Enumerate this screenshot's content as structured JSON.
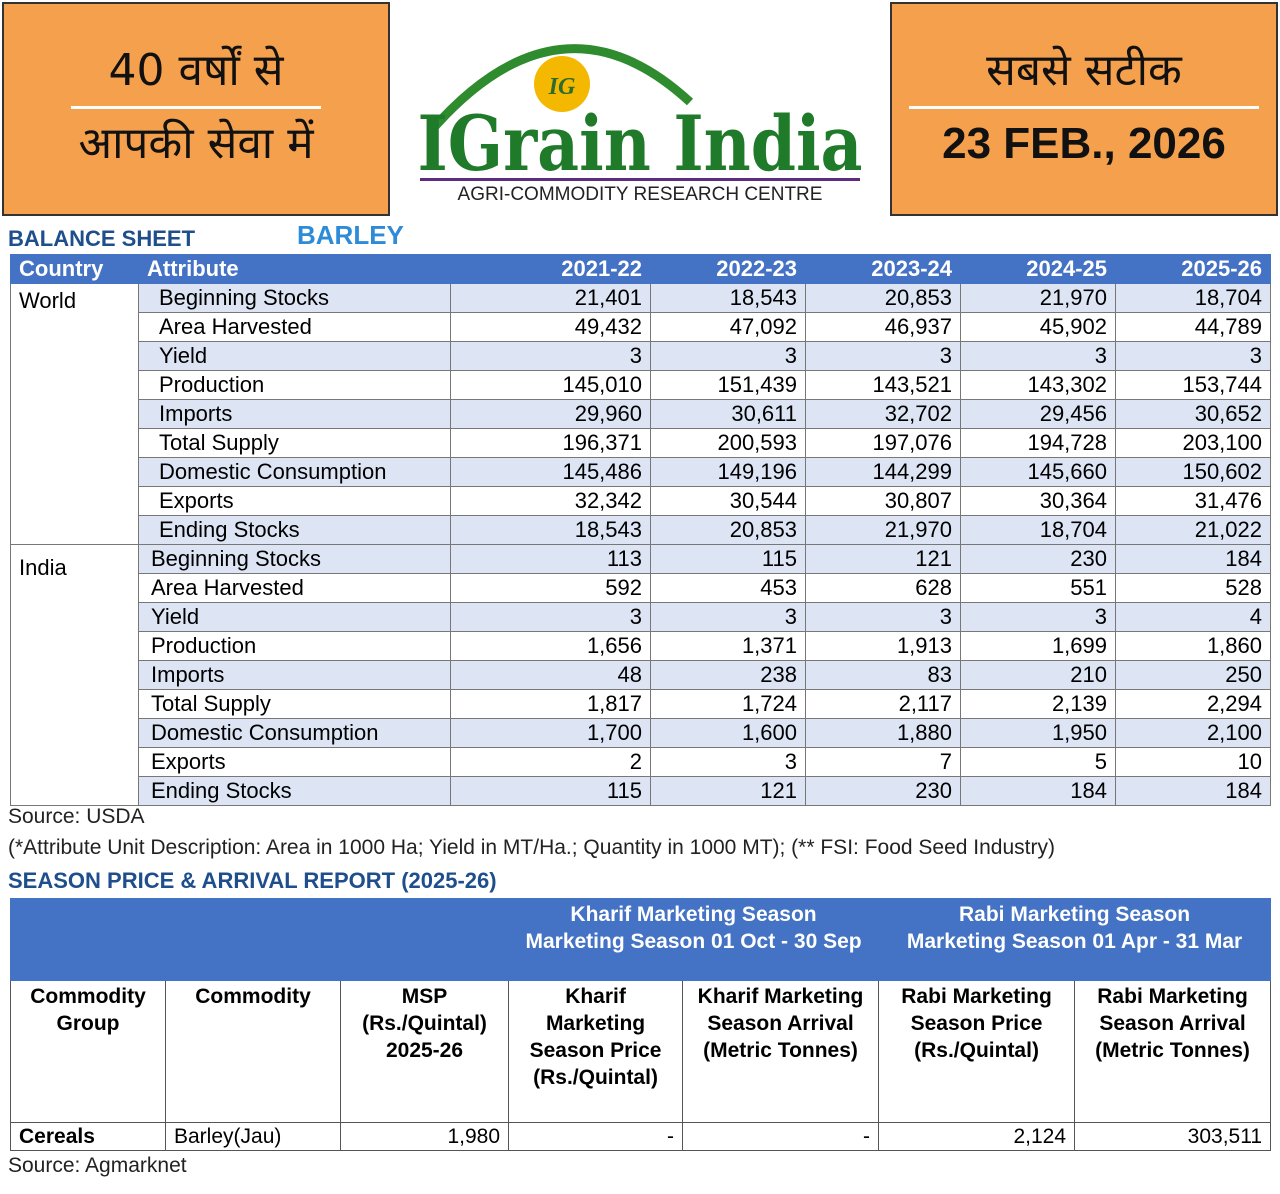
{
  "header": {
    "left_line1": "40 वर्षों से",
    "left_line2": "आपकी सेवा में",
    "logo_badge": "IG",
    "logo_title": "IGrain India",
    "logo_subtitle": "AGRI-COMMODITY RESEARCH CENTRE",
    "right_line1": "सबसे सटीक",
    "date": "23 FEB., 2026"
  },
  "balance_sheet": {
    "label": "BALANCE SHEET",
    "commodity": "BARLEY",
    "columns": [
      "Country",
      "Attribute",
      "2021-22",
      "2022-23",
      "2023-24",
      "2024-25",
      "2025-26"
    ],
    "groups": [
      {
        "country": "World",
        "rows": [
          [
            "Beginning Stocks",
            "21,401",
            "18,543",
            "20,853",
            "21,970",
            "18,704"
          ],
          [
            "Area Harvested",
            "49,432",
            "47,092",
            "46,937",
            "45,902",
            "44,789"
          ],
          [
            "Yield",
            "3",
            "3",
            "3",
            "3",
            "3"
          ],
          [
            "Production",
            "145,010",
            "151,439",
            "143,521",
            "143,302",
            "153,744"
          ],
          [
            "Imports",
            "29,960",
            "30,611",
            "32,702",
            "29,456",
            "30,652"
          ],
          [
            "Total Supply",
            "196,371",
            "200,593",
            "197,076",
            "194,728",
            "203,100"
          ],
          [
            "Domestic Consumption",
            "145,486",
            "149,196",
            "144,299",
            "145,660",
            "150,602"
          ],
          [
            "Exports",
            "32,342",
            "30,544",
            "30,807",
            "30,364",
            "31,476"
          ],
          [
            "Ending Stocks",
            "18,543",
            "20,853",
            "21,970",
            "18,704",
            "21,022"
          ]
        ]
      },
      {
        "country": "India",
        "rows": [
          [
            "Beginning Stocks",
            "113",
            "115",
            "121",
            "230",
            "184"
          ],
          [
            "Area Harvested",
            "592",
            "453",
            "628",
            "551",
            "528"
          ],
          [
            "Yield",
            "3",
            "3",
            "3",
            "3",
            "4"
          ],
          [
            "Production",
            "1,656",
            "1,371",
            "1,913",
            "1,699",
            "1,860"
          ],
          [
            "Imports",
            "48",
            "238",
            "83",
            "210",
            "250"
          ],
          [
            "Total Supply",
            "1,817",
            "1,724",
            "2,117",
            "2,139",
            "2,294"
          ],
          [
            "Domestic Consumption",
            "1,700",
            "1,600",
            "1,880",
            "1,950",
            "2,100"
          ],
          [
            "Exports",
            "2",
            "3",
            "7",
            "5",
            "10"
          ],
          [
            "Ending Stocks",
            "115",
            "121",
            "230",
            "184",
            "184"
          ]
        ]
      }
    ],
    "source": "Source: USDA",
    "note": "(*Attribute Unit Description: Area in 1000 Ha; Yield in MT/Ha.; Quantity in 1000 MT); (** FSI: Food Seed Industry)"
  },
  "season_report": {
    "title": "SEASON PRICE & ARRIVAL REPORT (2025-26)",
    "kharif_title": "Kharif Marketing Season",
    "kharif_period": "Marketing Season 01 Oct - 30 Sep",
    "rabi_title": "Rabi Marketing Season",
    "rabi_period": "Marketing Season 01 Apr - 31 Mar",
    "columns": [
      "Commodity Group",
      "Commodity",
      "MSP (Rs./Quintal) 2025-26",
      "Kharif Marketing Season Price (Rs./Quintal)",
      "Kharif Marketing Season Arrival (Metric Tonnes)",
      "Rabi Marketing Season Price (Rs./Quintal)",
      "Rabi Marketing Season Arrival (Metric Tonnes)"
    ],
    "rows": [
      [
        "Cereals",
        "Barley(Jau)",
        "1,980",
        "-",
        "-",
        "2,124",
        "303,511"
      ]
    ],
    "source": "Source: Agmarknet"
  }
}
